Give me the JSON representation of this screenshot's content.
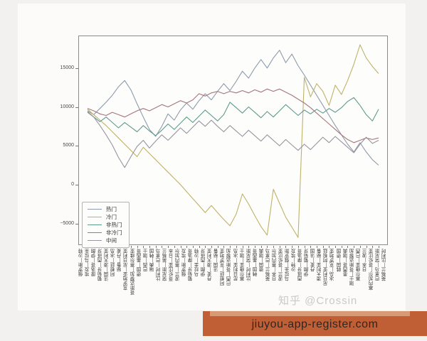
{
  "watermark": "知乎 @Crossin",
  "banner": {
    "text": "jiuyou-app-register.com",
    "bg": "#c05f36",
    "strip": "#d89a74"
  },
  "chart_data": {
    "type": "line",
    "title": "",
    "xlabel": "",
    "ylabel": "",
    "grid": false,
    "legend_position": "lower-left",
    "ylim": [
      -7600,
      19200
    ],
    "yticks": [
      15000,
      10000,
      5000,
      0,
      -5000
    ],
    "categories": [
      "俄罗斯—沙特",
      "埃及—乌拉圭",
      "摩洛哥—伊朗",
      "葡萄牙—西班牙",
      "法国—澳大利亚",
      "阿根廷—冰岛",
      "秘鲁—丹麦",
      "克罗地亚—尼日利亚",
      "哥斯达黎加—塞尔维亚",
      "德国—墨西哥",
      "巴西—瑞士",
      "瑞典—韩国",
      "比利时—巴拿马",
      "突尼斯—英格兰",
      "哥伦比亚—日本",
      "波兰—塞内加尔",
      "俄罗斯—埃及",
      "葡萄牙—摩洛哥",
      "乌拉圭—沙特",
      "伊朗—西班牙",
      "丹麦—澳大利亚",
      "法国—秘鲁",
      "阿根廷—克罗地亚",
      "巴西—哥斯达黎加",
      "尼日利亚—冰岛",
      "塞尔维亚—瑞士",
      "比利时—突尼斯",
      "韩国—墨西哥",
      "德国—瑞典",
      "英格兰—巴拿马",
      "日本—塞内加尔",
      "波兰—哥伦比亚",
      "乌拉圭—俄罗斯",
      "沙特—埃及",
      "西班牙—摩洛哥",
      "伊朗—葡萄牙",
      "丹麦—法国",
      "澳大利亚—秘鲁",
      "尼日利亚—阿根廷",
      "冰岛—克罗地亚",
      "韩国—德国",
      "墨西哥—瑞典",
      "瑞士—哥斯达黎加",
      "塞尔维亚—巴西",
      "日本—波兰",
      "塞内加尔—哥伦比亚",
      "巴拿马—突尼斯",
      "英格兰—比利时"
    ],
    "series": [
      {
        "name": "热门",
        "color": "#8e9baa",
        "values": [
          9600,
          9100,
          9900,
          10700,
          11600,
          12700,
          13500,
          12300,
          10500,
          8800,
          7200,
          6300,
          7600,
          9200,
          8400,
          9700,
          10600,
          9800,
          10900,
          11800,
          11000,
          12100,
          13100,
          12200,
          13400,
          14700,
          13800,
          15100,
          16200,
          15100,
          16400,
          17400,
          15800,
          16900,
          15400,
          14200,
          12900,
          11600,
          10300,
          9000,
          7700,
          6500,
          5300,
          4300,
          5500,
          4300,
          3300,
          2600
        ]
      },
      {
        "name": "冷门",
        "color": "#bfb269",
        "values": [
          9800,
          9100,
          8400,
          7700,
          6900,
          6100,
          5300,
          4500,
          3700,
          4900,
          4100,
          3300,
          2500,
          1700,
          900,
          100,
          -800,
          -1700,
          -2600,
          -3500,
          -2600,
          -3500,
          -4400,
          -5200,
          -3700,
          -1100,
          -2400,
          -3900,
          -5300,
          -6400,
          -500,
          -2300,
          -4100,
          -5400,
          -6700,
          13900,
          11400,
          13100,
          12100,
          10300,
          12900,
          11700,
          13500,
          15600,
          18100,
          16400,
          15300,
          14400
        ]
      },
      {
        "name": "非热门",
        "color": "#5f9a8e",
        "values": [
          9400,
          8800,
          8200,
          8800,
          8100,
          7400,
          8100,
          7500,
          6900,
          7700,
          7000,
          6400,
          7100,
          7900,
          7200,
          8000,
          8800,
          8100,
          8900,
          9700,
          9000,
          8300,
          9100,
          10700,
          10000,
          9300,
          10100,
          9400,
          8700,
          9500,
          8800,
          9600,
          10400,
          9700,
          9000,
          9700,
          9200,
          9800,
          9300,
          9900,
          9400,
          10000,
          10800,
          11300,
          10300,
          9100,
          8300,
          9800
        ]
      },
      {
        "name": "非冷门",
        "color": "#a4767c",
        "values": [
          9900,
          9600,
          9200,
          9000,
          9400,
          9100,
          8800,
          9200,
          9600,
          9900,
          9600,
          10000,
          10400,
          10100,
          10500,
          10900,
          10600,
          11000,
          11800,
          11500,
          11900,
          12100,
          11800,
          12100,
          11900,
          12200,
          11900,
          12300,
          12000,
          12400,
          12100,
          12400,
          12000,
          11600,
          11100,
          10600,
          10000,
          9300,
          8600,
          7900,
          7200,
          6500,
          5900,
          5500,
          5800,
          6100,
          5900,
          6100
        ]
      },
      {
        "name": "中间",
        "color": "#9a93a0",
        "values": [
          9500,
          8800,
          7700,
          6500,
          5200,
          3600,
          2300,
          3700,
          5000,
          5800,
          4800,
          5700,
          6500,
          5800,
          6600,
          7400,
          6700,
          7500,
          8300,
          7600,
          8400,
          7600,
          6900,
          7700,
          7000,
          6300,
          7100,
          6400,
          5700,
          6500,
          5800,
          5100,
          5900,
          5200,
          4500,
          5300,
          4600,
          5400,
          6200,
          5500,
          6300,
          5600,
          4900,
          4200,
          5300,
          6200,
          5400,
          5800
        ]
      }
    ]
  }
}
